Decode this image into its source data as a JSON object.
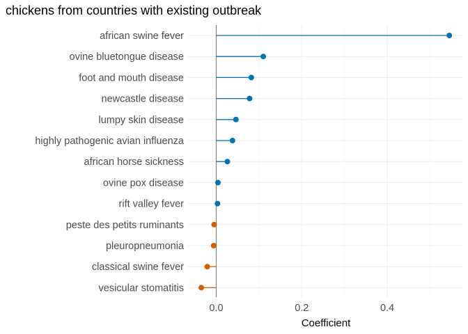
{
  "chart_data": {
    "type": "lollipop",
    "title": "chickens from countries with existing outbreak",
    "xlabel": "Coefficient",
    "ylabel": "",
    "xlim": [
      -0.075,
      0.555
    ],
    "xticks": [
      0.0,
      0.2,
      0.4
    ],
    "xtick_labels": [
      "0.0",
      "0.2",
      "0.4"
    ],
    "grid": true,
    "legend": "none",
    "colors": {
      "positive": "#0072B2",
      "negative": "#D55E00",
      "zero_line": "#808080"
    },
    "categories": [
      "african swine fever",
      "ovine bluetongue disease",
      "foot and mouth disease",
      "newcastle disease",
      "lumpy skin disease",
      "highly pathogenic avian influenza",
      "african horse sickness",
      "ovine pox disease",
      "rift valley fever",
      "peste des petits ruminants",
      "pleuropneumonia",
      "classical swine fever",
      "vesicular stomatitis"
    ],
    "values": [
      0.545,
      0.11,
      0.082,
      0.078,
      0.046,
      0.038,
      0.026,
      0.004,
      0.003,
      -0.005,
      -0.006,
      -0.021,
      -0.035
    ]
  }
}
